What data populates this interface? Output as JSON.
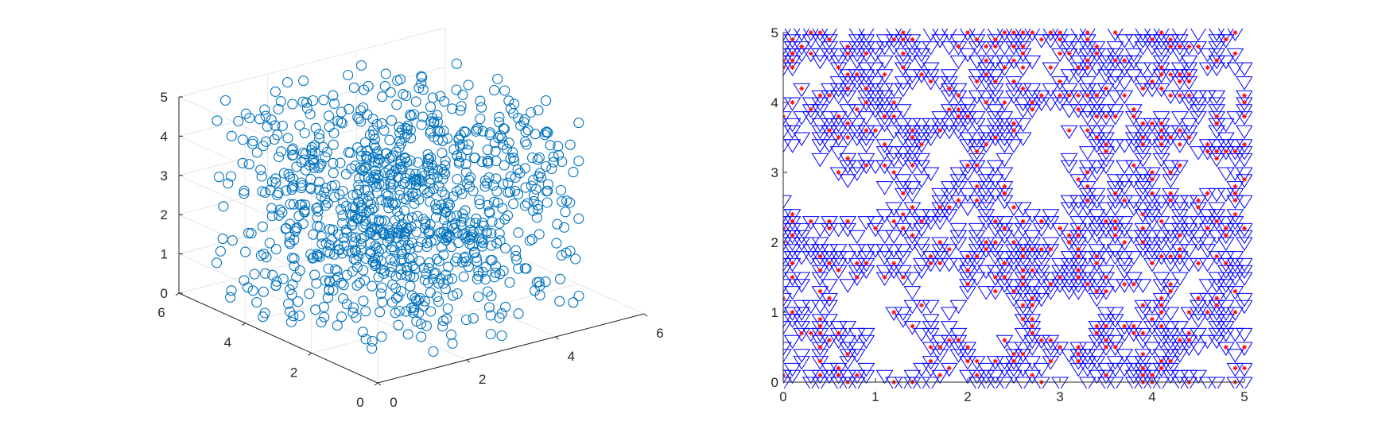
{
  "colors": {
    "background": "#ffffff",
    "axis": "#262626",
    "grid": "#e6e6e6",
    "scatter3d_marker": "#0072bd",
    "triangle_marker": "#0000ff",
    "star_marker": "#ff0000"
  },
  "chart_data": [
    {
      "type": "scatter",
      "projection": "3d",
      "marker": "circle-open",
      "point_count": 1000,
      "distribution": "uniform-random",
      "xlim": [
        0,
        6
      ],
      "ylim": [
        0,
        6
      ],
      "zlim": [
        0,
        5
      ],
      "x_ticks": [
        "0",
        "2",
        "4",
        "6"
      ],
      "y_ticks": [
        "0",
        "2",
        "4",
        "6"
      ],
      "z_ticks": [
        "0",
        "1",
        "2",
        "3",
        "4",
        "5"
      ],
      "grid": true,
      "title": "",
      "xlabel": "",
      "ylabel": "",
      "zlabel": ""
    },
    {
      "type": "scatter",
      "projection": "2d",
      "lattice_step": 0.1,
      "xlim": [
        0,
        5
      ],
      "ylim": [
        0,
        5
      ],
      "x_ticks": [
        "0",
        "1",
        "2",
        "3",
        "4",
        "5"
      ],
      "y_ticks": [
        "0",
        "1",
        "2",
        "3",
        "4",
        "5"
      ],
      "grid": false,
      "series": [
        {
          "marker": "triangle-down-open",
          "color": "#0000ff"
        },
        {
          "marker": "star",
          "color": "#ff0000"
        }
      ],
      "title": "",
      "xlabel": "",
      "ylabel": ""
    }
  ]
}
